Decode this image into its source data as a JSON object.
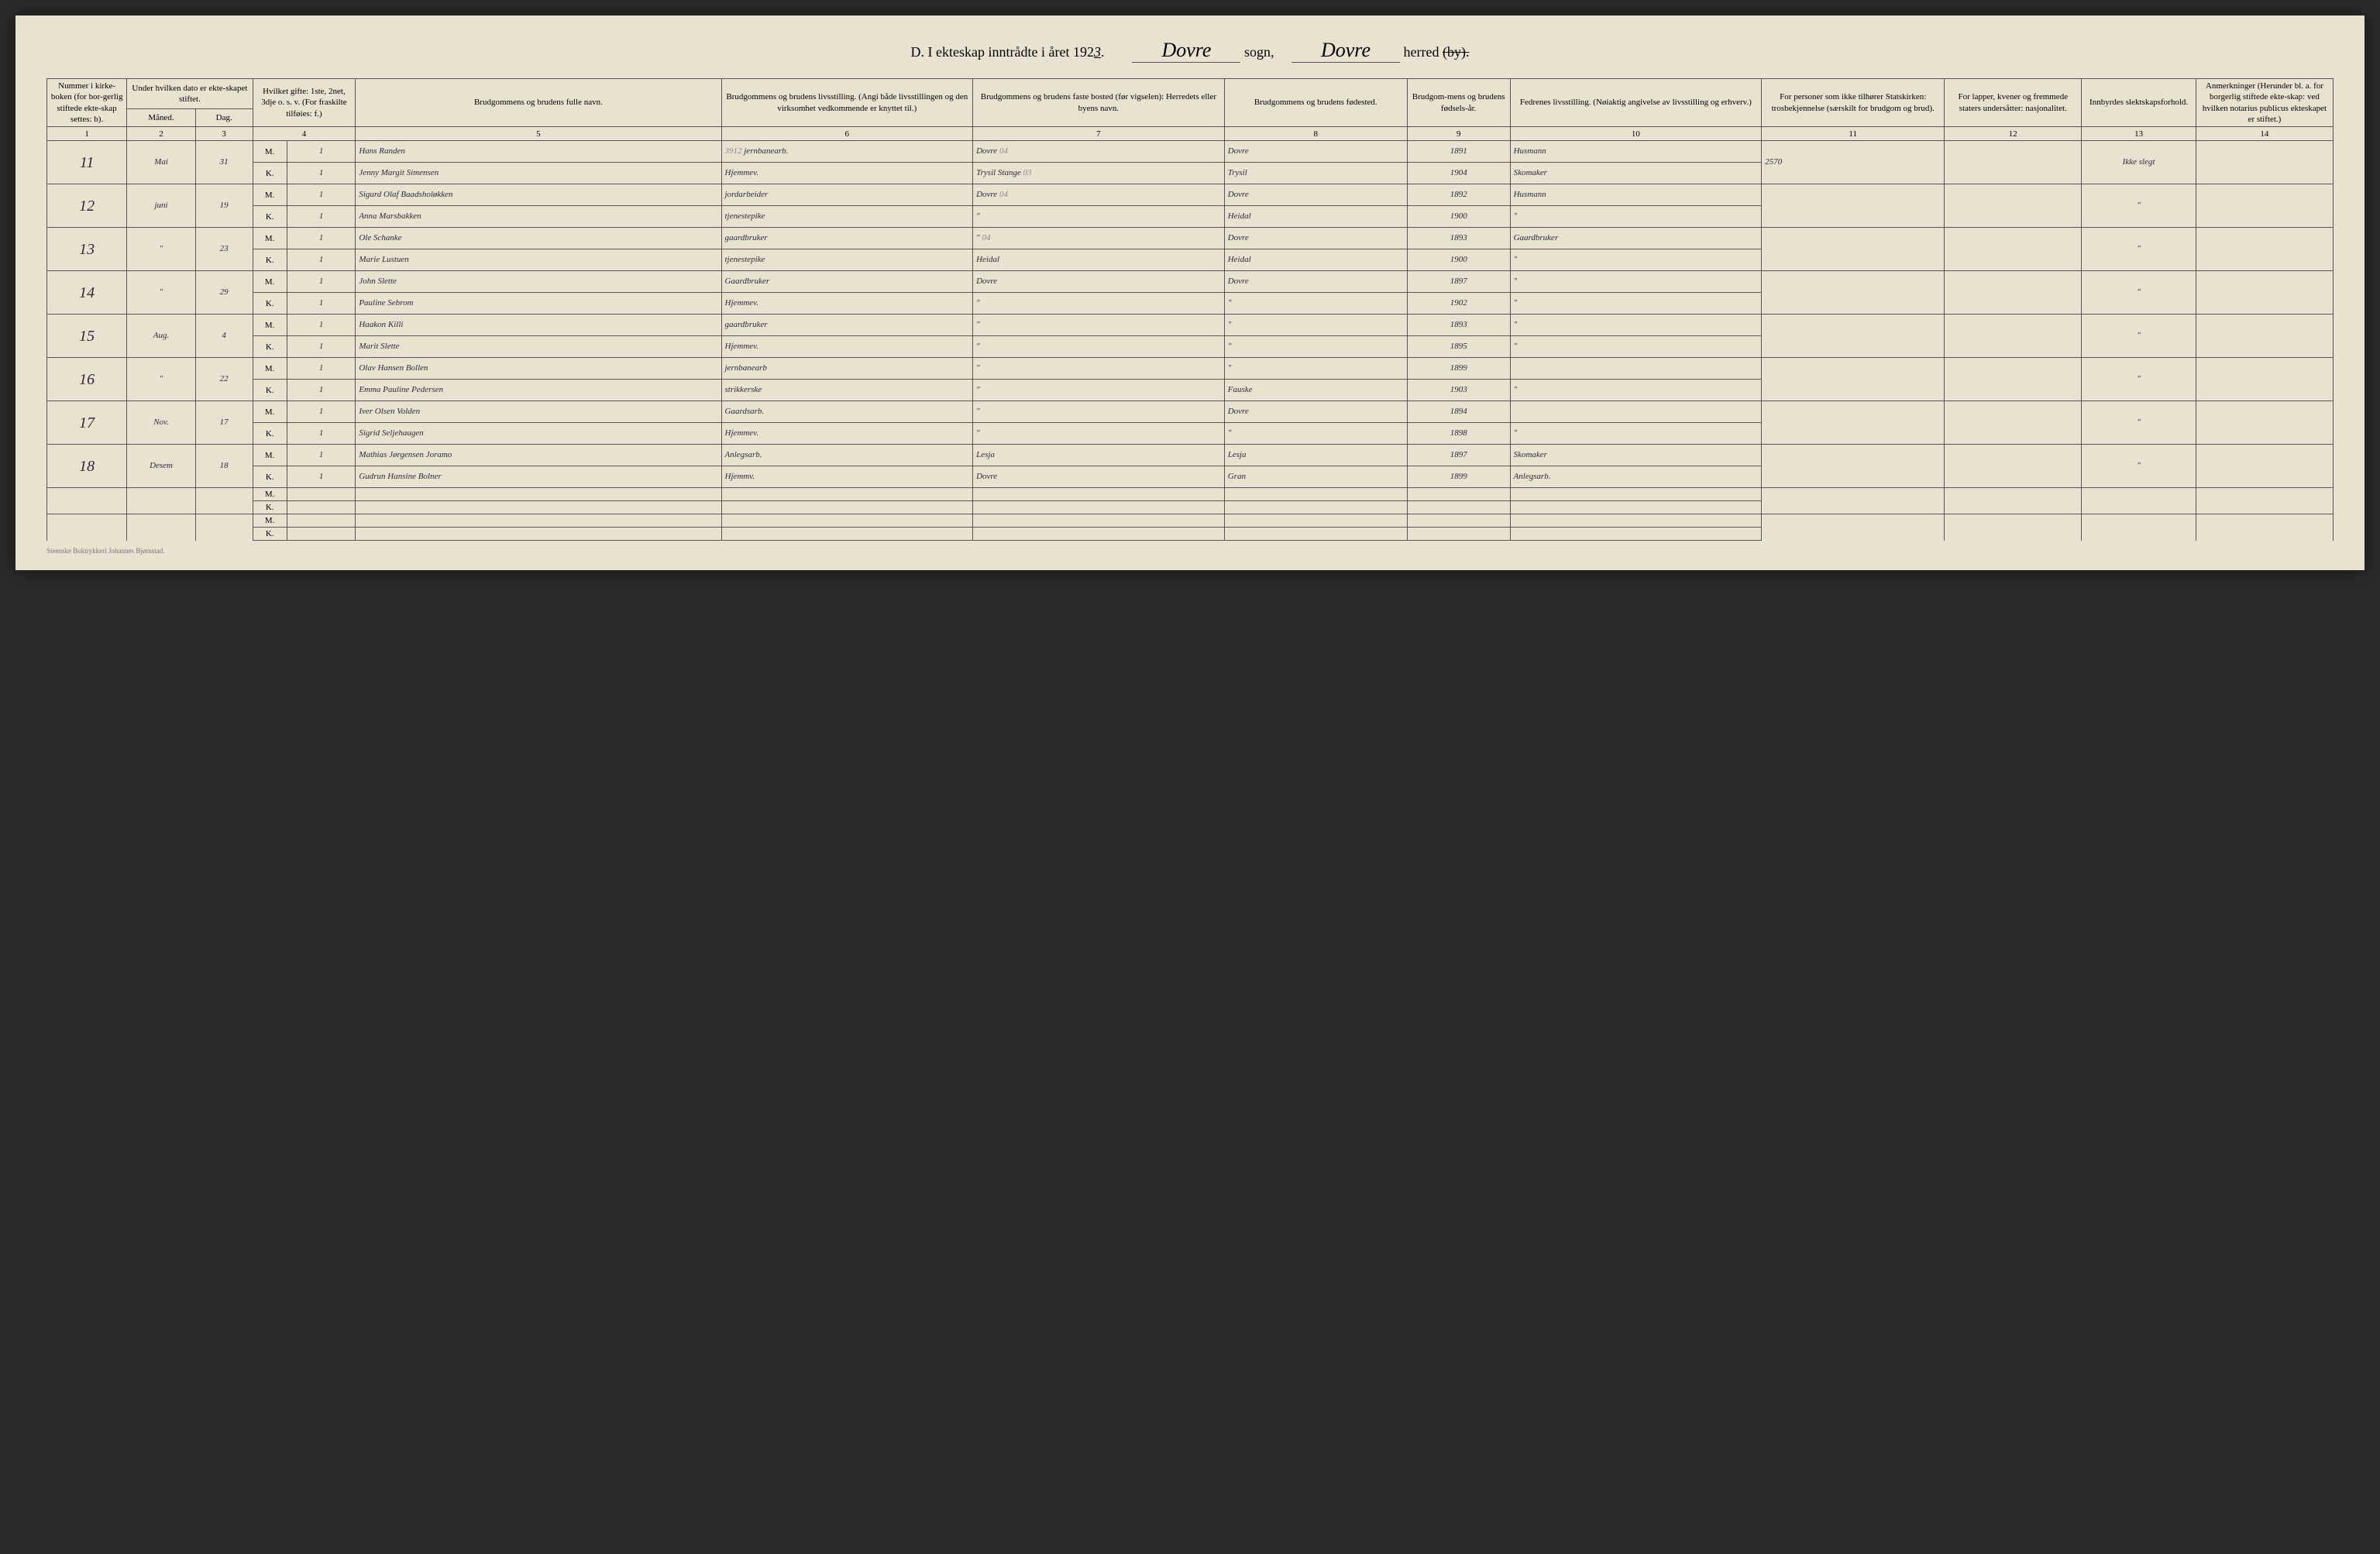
{
  "header": {
    "form_letter": "D.",
    "title_pre": "I ekteskap inntrådte i året 192",
    "year_digit": "3",
    "sogn_label": "sogn,",
    "sogn_value": "Dovre",
    "herred_label": "herred",
    "herred_strike": "(by).",
    "herred_value": "Dovre"
  },
  "columns": {
    "c1": "Nummer i kirke-boken (for bor-gerlig stiftede ekte-skap settes: b).",
    "c2_top": "Under hvilken dato er ekte-skapet stiftet.",
    "c2a": "Måned.",
    "c2b": "Dag.",
    "c4": "Hvilket gifte: 1ste, 2net, 3dje o. s. v. (For fraskilte tilføies: f.)",
    "c5": "Brudgommens og brudens fulle navn.",
    "c6": "Brudgommens og brudens livsstilling. (Angi både livsstillingen og den virksomhet vedkommende er knyttet til.)",
    "c7": "Brudgommens og brudens faste bosted (før vigselen): Herredets eller byens navn.",
    "c8": "Brudgommens og brudens fødested.",
    "c9": "Brudgom-mens og brudens fødsels-år.",
    "c10": "Fedrenes livsstilling. (Nøiaktig angivelse av livsstilling og erhverv.)",
    "c11": "For personer som ikke tilhører Statskirken: trosbekjennelse (særskilt for brudgom og brud).",
    "c12": "For lapper, kvener og fremmede staters undersåtter: nasjonalitet.",
    "c13": "Innbyrdes slektskapsforhold.",
    "c14": "Anmerkninger (Herunder bl. a. for borgerlig stiftede ekte-skap: ved hvilken notarius publicus ekteskapet er stiftet.)"
  },
  "colnums": [
    "1",
    "2",
    "3",
    "4",
    "5",
    "6",
    "7",
    "8",
    "9",
    "10",
    "11",
    "12",
    "13",
    "14"
  ],
  "labels": {
    "M": "M.",
    "K": "K."
  },
  "rows": [
    {
      "num": "11",
      "month": "Mai",
      "day": "31",
      "M": {
        "gifte": "1",
        "name": "Hans Randen",
        "stilling": "jernbanearb.",
        "pencil6": "3912",
        "bosted": "Dovre",
        "pencil7": "04",
        "fodested": "Dovre",
        "aar": "1891",
        "far": "Husmann",
        "c11": "2570"
      },
      "K": {
        "gifte": "1",
        "name": "Jenny Margit Simensen",
        "stilling": "Hjemmev.",
        "bosted": "Trysil Stange",
        "pencil7": "03",
        "fodested": "Trysil",
        "aar": "1904",
        "far": "Skomaker"
      },
      "c13": "Ikke slegt"
    },
    {
      "num": "12",
      "month": "juni",
      "day": "19",
      "M": {
        "gifte": "1",
        "name": "Sigurd Olaf Baadsholøkken",
        "stilling": "jordarbeider",
        "bosted": "Dovre",
        "pencil7": "04",
        "fodested": "Dovre",
        "aar": "1892",
        "far": "Husmann"
      },
      "K": {
        "gifte": "1",
        "name": "Anna Marsbakken",
        "stilling": "tjenestepike",
        "bosted": "\"",
        "fodested": "Heidal",
        "aar": "1900",
        "far": "\""
      },
      "c13": "\""
    },
    {
      "num": "13",
      "month": "\"",
      "day": "23",
      "M": {
        "gifte": "1",
        "name": "Ole Schanke",
        "stilling": "gaardbruker",
        "bosted": "\"",
        "pencil7": "04",
        "fodested": "Dovre",
        "aar": "1893",
        "far": "Gaardbruker"
      },
      "K": {
        "gifte": "1",
        "name": "Marie Lustuen",
        "stilling": "tjenestepike",
        "bosted": "Heidal",
        "fodested": "Heidal",
        "aar": "1900",
        "far": "\""
      },
      "c13": "\""
    },
    {
      "num": "14",
      "month": "\"",
      "day": "29",
      "M": {
        "gifte": "1",
        "name": "John Slette",
        "stilling": "Gaardbruker",
        "bosted": "Dovre",
        "fodested": "Dovre",
        "aar": "1897",
        "far": "\""
      },
      "K": {
        "gifte": "1",
        "name": "Pauline Sebrom",
        "stilling": "Hjemmev.",
        "bosted": "\"",
        "fodested": "\"",
        "aar": "1902",
        "far": "\""
      },
      "c13": "\""
    },
    {
      "num": "15",
      "month": "Aug.",
      "day": "4",
      "M": {
        "gifte": "1",
        "name": "Haakon Killi",
        "stilling": "gaardbruker",
        "bosted": "\"",
        "fodested": "\"",
        "aar": "1893",
        "far": "\""
      },
      "K": {
        "gifte": "1",
        "name": "Marit Slette",
        "stilling": "Hjemmev.",
        "bosted": "\"",
        "fodested": "\"",
        "aar": "1895",
        "far": "\""
      },
      "c13": "\""
    },
    {
      "num": "16",
      "month": "\"",
      "day": "22",
      "M": {
        "gifte": "1",
        "name": "Olav Hansen Bollen",
        "stilling": "jernbanearb",
        "bosted": "\"",
        "fodested": "\"",
        "aar": "1899",
        "far": ""
      },
      "K": {
        "gifte": "1",
        "name": "Emma Pauline Pedersen",
        "stilling": "strikkerske",
        "bosted": "\"",
        "fodested": "Fauske",
        "aar": "1903",
        "far": "\""
      },
      "c13": "\""
    },
    {
      "num": "17",
      "month": "Nov.",
      "day": "17",
      "M": {
        "gifte": "1",
        "name": "Iver Olsen Volden",
        "stilling": "Gaardsarb.",
        "bosted": "\"",
        "fodested": "Dovre",
        "aar": "1894",
        "far": ""
      },
      "K": {
        "gifte": "1",
        "name": "Sigrid Seljehaugen",
        "stilling": "Hjemmev.",
        "bosted": "\"",
        "fodested": "\"",
        "aar": "1898",
        "far": "\""
      },
      "c13": "\""
    },
    {
      "num": "18",
      "month": "Desem",
      "day": "18",
      "M": {
        "gifte": "1",
        "name": "Mathias Jørgensen Joramo",
        "stilling": "Anlegsarb.",
        "bosted": "Lesja",
        "fodested": "Lesja",
        "aar": "1897",
        "far": "Skomaker"
      },
      "K": {
        "gifte": "1",
        "name": "Gudrun Hansine Bolner",
        "stilling": "Hjemmv.",
        "bosted": "Dovre",
        "fodested": "Gran",
        "aar": "1899",
        "far": "Anlegsarb."
      },
      "c13": "\""
    }
  ],
  "footer": "Steenske Boktrykkeri Johannes Bjørnstad."
}
